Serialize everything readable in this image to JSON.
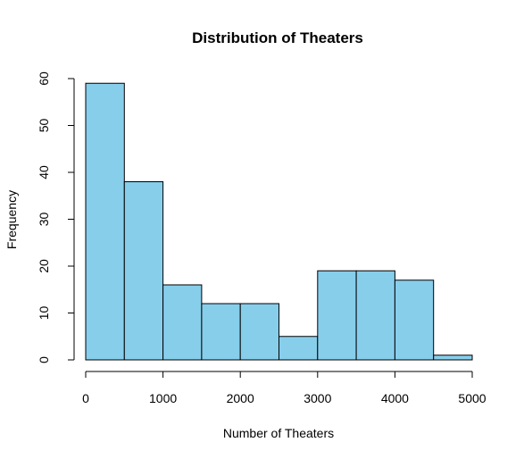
{
  "chart_data": {
    "type": "bar",
    "title": "Distribution of Theaters",
    "xlabel": "Number of Theaters",
    "ylabel": "Frequency",
    "bin_edges": [
      0,
      500,
      1000,
      1500,
      2000,
      2500,
      3000,
      3500,
      4000,
      4500,
      5000
    ],
    "values": [
      59,
      38,
      16,
      12,
      12,
      5,
      19,
      19,
      17,
      1
    ],
    "xlim": [
      0,
      5000
    ],
    "ylim": [
      0,
      60
    ],
    "xticks": [
      "0",
      "1000",
      "2000",
      "3000",
      "4000",
      "5000"
    ],
    "yticks": [
      "0",
      "10",
      "20",
      "30",
      "40",
      "50",
      "60"
    ],
    "bar_color": "#87CEEB",
    "grid": false,
    "legend": "none"
  }
}
